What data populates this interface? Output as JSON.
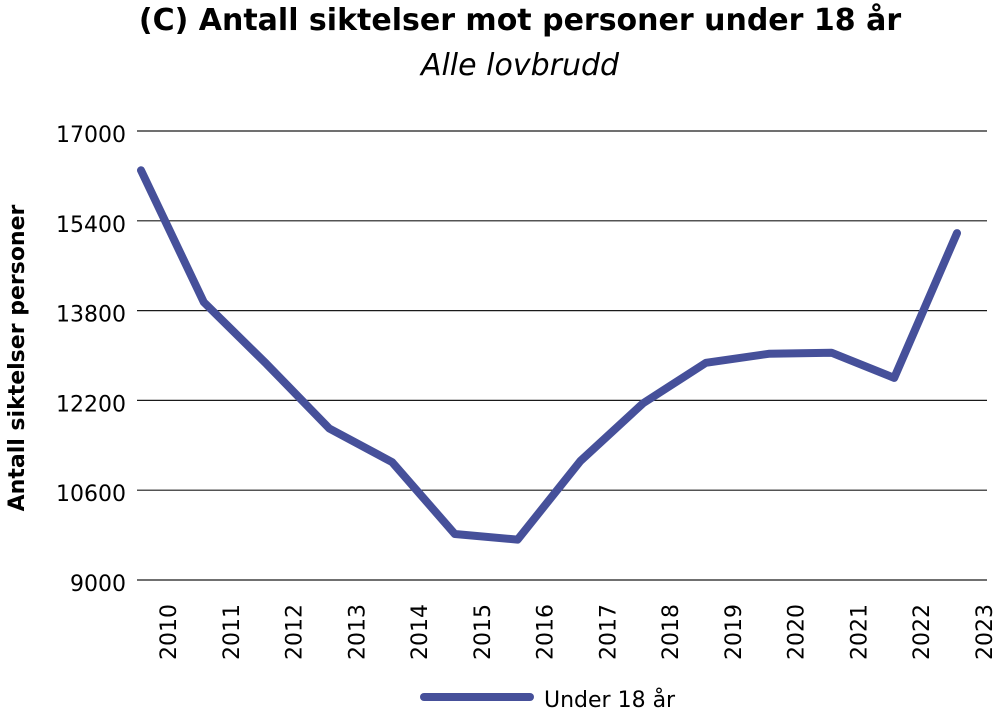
{
  "chart_data": {
    "type": "line",
    "title": "(C) Antall siktelser mot personer under 18 år",
    "subtitle": "Alle lovbrudd",
    "xlabel": "",
    "ylabel": "Antall siktelser personer",
    "ylim": [
      9000,
      17000
    ],
    "yticks": [
      "17000",
      "15400",
      "13800",
      "12200",
      "10600",
      "9000"
    ],
    "ytick_values": [
      17000,
      15400,
      13800,
      12200,
      10600,
      9000
    ],
    "categories": [
      "2010",
      "2011",
      "2012",
      "2013",
      "2014",
      "2015",
      "2016",
      "2017",
      "2018",
      "2019",
      "2020",
      "2021",
      "2022",
      "2023"
    ],
    "series": [
      {
        "name": "Under 18 år",
        "color": "#46509a",
        "values": [
          16300,
          13950,
          12850,
          11700,
          11100,
          9820,
          9720,
          11120,
          12150,
          12870,
          13030,
          13050,
          12600,
          15180
        ]
      }
    ],
    "grid": true,
    "legend": "bottom-center"
  }
}
